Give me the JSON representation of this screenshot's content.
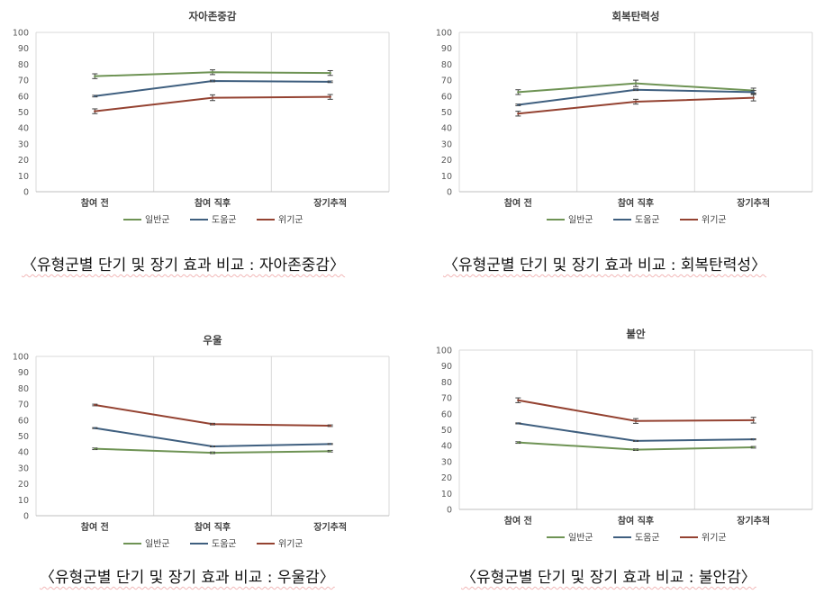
{
  "chart_data": [
    {
      "type": "line",
      "title": "자아존중감",
      "categories": [
        "참여 전",
        "참여 직후",
        "장기추적"
      ],
      "ylim": [
        0,
        100
      ],
      "yticks": [
        0,
        10,
        20,
        30,
        40,
        50,
        60,
        70,
        80,
        90,
        100
      ],
      "grid": "vertical",
      "legend": "bottom",
      "series": [
        {
          "name": "일반군",
          "color": "#6e9354",
          "values": [
            72.5,
            75.0,
            74.5
          ],
          "errors": [
            1.5,
            1.5,
            1.5
          ]
        },
        {
          "name": "도움군",
          "color": "#3f5f7f",
          "values": [
            60.0,
            69.5,
            69.0
          ],
          "errors": [
            0.5,
            0.5,
            0.5
          ]
        },
        {
          "name": "위기군",
          "color": "#944231",
          "values": [
            50.5,
            59.0,
            59.5
          ],
          "errors": [
            1.5,
            1.8,
            1.5
          ]
        }
      ],
      "caption": "〈유형군별 단기 및 장기 효과 비교 : 자아존중감〉"
    },
    {
      "type": "line",
      "title": "회복탄력성",
      "categories": [
        "참여 전",
        "참여 직후",
        "장기추적"
      ],
      "ylim": [
        0,
        100
      ],
      "yticks": [
        0,
        10,
        20,
        30,
        40,
        50,
        60,
        70,
        80,
        90,
        100
      ],
      "grid": "vertical",
      "legend": "bottom",
      "series": [
        {
          "name": "일반군",
          "color": "#6e9354",
          "values": [
            62.5,
            68.0,
            63.5
          ],
          "errors": [
            1.5,
            2.0,
            1.5
          ]
        },
        {
          "name": "도움군",
          "color": "#3f5f7f",
          "values": [
            54.5,
            64.0,
            62.5
          ],
          "errors": [
            0.5,
            0.5,
            1.0
          ]
        },
        {
          "name": "위기군",
          "color": "#944231",
          "values": [
            49.0,
            56.5,
            59.0
          ],
          "errors": [
            1.5,
            1.5,
            2.0
          ]
        }
      ],
      "caption": "〈유형군별 단기 및 장기 효과 비교 : 회복탄력성〉"
    },
    {
      "type": "line",
      "title": "우울",
      "categories": [
        "참여 전",
        "참여 직후",
        "장기추적"
      ],
      "ylim": [
        0,
        100
      ],
      "yticks": [
        0,
        10,
        20,
        30,
        40,
        50,
        60,
        70,
        80,
        90,
        100
      ],
      "grid": "vertical",
      "legend": "bottom",
      "series": [
        {
          "name": "일반군",
          "color": "#6e9354",
          "values": [
            42.0,
            39.5,
            40.5
          ],
          "errors": [
            0.5,
            0.5,
            0.5
          ]
        },
        {
          "name": "도움군",
          "color": "#3f5f7f",
          "values": [
            55.0,
            43.5,
            45.0
          ],
          "errors": [
            0.3,
            0.3,
            0.3
          ]
        },
        {
          "name": "위기군",
          "color": "#944231",
          "values": [
            69.5,
            57.5,
            56.5
          ],
          "errors": [
            0.5,
            0.5,
            0.5
          ]
        }
      ],
      "caption": "〈유형군별 단기 및 장기 효과 비교 : 우울감〉"
    },
    {
      "type": "line",
      "title": "불안",
      "categories": [
        "참여 전",
        "참여 직후",
        "장기추적"
      ],
      "ylim": [
        0,
        100
      ],
      "yticks": [
        0,
        10,
        20,
        30,
        40,
        50,
        60,
        70,
        80,
        90,
        100
      ],
      "grid": "vertical",
      "legend": "bottom",
      "series": [
        {
          "name": "일반군",
          "color": "#6e9354",
          "values": [
            42.0,
            37.5,
            39.0
          ],
          "errors": [
            0.5,
            0.5,
            0.5
          ]
        },
        {
          "name": "도움군",
          "color": "#3f5f7f",
          "values": [
            54.0,
            43.0,
            44.0
          ],
          "errors": [
            0.3,
            0.3,
            0.3
          ]
        },
        {
          "name": "위기군",
          "color": "#944231",
          "values": [
            68.5,
            55.5,
            56.0
          ],
          "errors": [
            1.5,
            1.5,
            1.8
          ]
        }
      ],
      "caption": "〈유형군별 단기 및 장기 효과 비교 : 불안감〉"
    }
  ]
}
